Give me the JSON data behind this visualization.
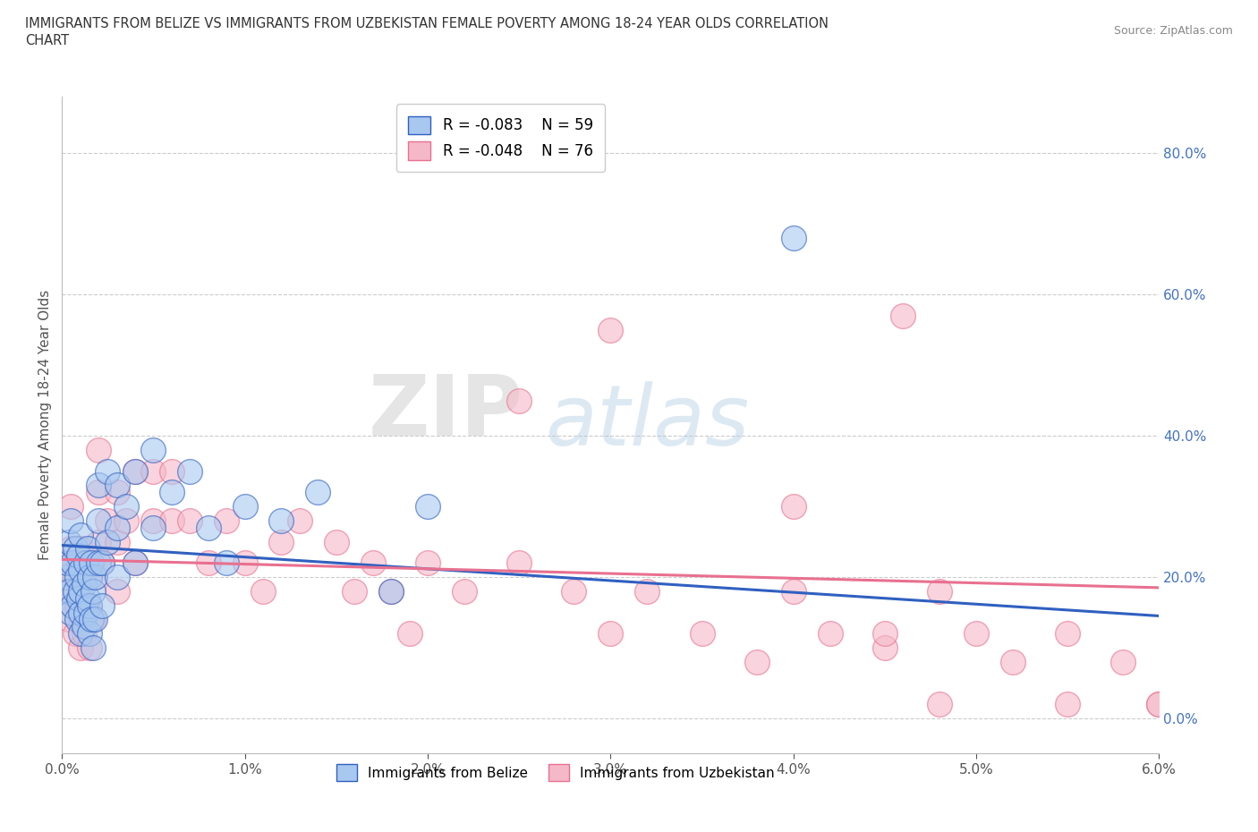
{
  "title": "IMMIGRANTS FROM BELIZE VS IMMIGRANTS FROM UZBEKISTAN FEMALE POVERTY AMONG 18-24 YEAR OLDS CORRELATION\nCHART",
  "source_text": "Source: ZipAtlas.com",
  "ylabel": "Female Poverty Among 18-24 Year Olds",
  "xlim": [
    0.0,
    0.06
  ],
  "ylim": [
    -0.05,
    0.88
  ],
  "x_ticks": [
    0.0,
    0.01,
    0.02,
    0.03,
    0.04,
    0.05,
    0.06
  ],
  "x_tick_labels": [
    "0.0%",
    "1.0%",
    "2.0%",
    "3.0%",
    "4.0%",
    "5.0%",
    "6.0%"
  ],
  "y_ticks_right": [
    0.0,
    0.2,
    0.4,
    0.6,
    0.8
  ],
  "y_tick_labels_right": [
    "0.0%",
    "20.0%",
    "40.0%",
    "60.0%",
    "80.0%"
  ],
  "belize_color": "#a8c8f0",
  "uzbekistan_color": "#f5b8c8",
  "belize_R": -0.083,
  "belize_N": 59,
  "uzbekistan_R": -0.048,
  "uzbekistan_N": 76,
  "belize_trend_color": "#3060c0",
  "uzbekistan_trend_color": "#e87090",
  "watermark_zip": "ZIP",
  "watermark_atlas": "atlas",
  "belize_trend_y0": 0.245,
  "belize_trend_y1": 0.145,
  "uzbekistan_trend_y0": 0.225,
  "uzbekistan_trend_y1": 0.185,
  "belize_x": [
    0.0002,
    0.0003,
    0.0004,
    0.0004,
    0.0005,
    0.0005,
    0.0006,
    0.0006,
    0.0007,
    0.0007,
    0.0008,
    0.0008,
    0.0009,
    0.0009,
    0.001,
    0.001,
    0.001,
    0.001,
    0.001,
    0.0012,
    0.0012,
    0.0013,
    0.0013,
    0.0014,
    0.0014,
    0.0015,
    0.0015,
    0.0015,
    0.0016,
    0.0016,
    0.0017,
    0.0017,
    0.0018,
    0.0018,
    0.002,
    0.002,
    0.002,
    0.0022,
    0.0022,
    0.0025,
    0.0025,
    0.003,
    0.003,
    0.003,
    0.0035,
    0.004,
    0.004,
    0.005,
    0.005,
    0.006,
    0.007,
    0.008,
    0.009,
    0.01,
    0.012,
    0.014,
    0.018,
    0.02,
    0.04
  ],
  "belize_y": [
    0.2,
    0.22,
    0.18,
    0.25,
    0.15,
    0.28,
    0.16,
    0.22,
    0.18,
    0.24,
    0.14,
    0.2,
    0.17,
    0.23,
    0.12,
    0.15,
    0.18,
    0.21,
    0.26,
    0.13,
    0.19,
    0.15,
    0.22,
    0.17,
    0.24,
    0.12,
    0.16,
    0.2,
    0.14,
    0.22,
    0.1,
    0.18,
    0.14,
    0.2,
    0.22,
    0.28,
    0.33,
    0.16,
    0.22,
    0.25,
    0.35,
    0.2,
    0.27,
    0.33,
    0.3,
    0.22,
    0.35,
    0.27,
    0.38,
    0.32,
    0.35,
    0.27,
    0.22,
    0.3,
    0.28,
    0.32,
    0.18,
    0.3,
    0.68
  ],
  "uzbekistan_x": [
    0.0002,
    0.0003,
    0.0004,
    0.0005,
    0.0005,
    0.0006,
    0.0006,
    0.0007,
    0.0007,
    0.0008,
    0.0009,
    0.001,
    0.001,
    0.001,
    0.001,
    0.0012,
    0.0012,
    0.0013,
    0.0014,
    0.0015,
    0.0015,
    0.0016,
    0.0017,
    0.0018,
    0.002,
    0.002,
    0.002,
    0.0022,
    0.0025,
    0.003,
    0.003,
    0.003,
    0.0035,
    0.004,
    0.004,
    0.005,
    0.005,
    0.006,
    0.006,
    0.007,
    0.008,
    0.009,
    0.01,
    0.011,
    0.012,
    0.013,
    0.015,
    0.016,
    0.017,
    0.018,
    0.019,
    0.02,
    0.022,
    0.025,
    0.028,
    0.03,
    0.032,
    0.035,
    0.038,
    0.04,
    0.042,
    0.045,
    0.048,
    0.05,
    0.052,
    0.055,
    0.058,
    0.06,
    0.03,
    0.025,
    0.04,
    0.045,
    0.055,
    0.06,
    0.048,
    0.046
  ],
  "uzbekistan_y": [
    0.18,
    0.22,
    0.14,
    0.24,
    0.3,
    0.16,
    0.22,
    0.12,
    0.2,
    0.16,
    0.22,
    0.1,
    0.14,
    0.18,
    0.24,
    0.12,
    0.2,
    0.16,
    0.22,
    0.1,
    0.16,
    0.22,
    0.14,
    0.2,
    0.25,
    0.32,
    0.38,
    0.22,
    0.28,
    0.18,
    0.25,
    0.32,
    0.28,
    0.22,
    0.35,
    0.28,
    0.35,
    0.28,
    0.35,
    0.28,
    0.22,
    0.28,
    0.22,
    0.18,
    0.25,
    0.28,
    0.25,
    0.18,
    0.22,
    0.18,
    0.12,
    0.22,
    0.18,
    0.22,
    0.18,
    0.12,
    0.18,
    0.12,
    0.08,
    0.18,
    0.12,
    0.1,
    0.18,
    0.12,
    0.08,
    0.12,
    0.08,
    0.02,
    0.55,
    0.45,
    0.3,
    0.12,
    0.02,
    0.02,
    0.02,
    0.57
  ]
}
